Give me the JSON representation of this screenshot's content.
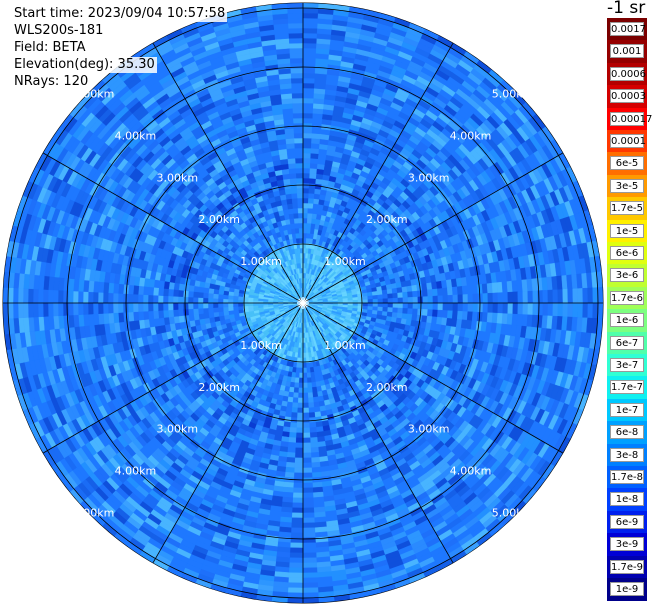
{
  "header": {
    "start_time": "Start time: 2023/09/04 10:57:58",
    "instrument": "WLS200s-181",
    "field": "Field: BETA",
    "elevation": "Elevation(deg): 35.30",
    "nrays": "NRays: 120"
  },
  "ppi": {
    "ring_labels": [
      "1.00km",
      "2.00km",
      "3.00km",
      "4.00km",
      "5.00km"
    ],
    "n_sectors": 12,
    "background_color": "#1e78ff"
  },
  "colorbar": {
    "unit_title": "-1 sr",
    "labels": [
      "0.0017",
      "0.001",
      "0.0006",
      "0.0003",
      "0.00017",
      "0.0001",
      "6e-5",
      "3e-5",
      "1.7e-5",
      "1e-5",
      "6e-6",
      "3e-6",
      "1.7e-6",
      "1e-6",
      "6e-7",
      "3e-7",
      "1.7e-7",
      "1e-7",
      "6e-8",
      "3e-8",
      "1.7e-8",
      "1e-8",
      "6e-9",
      "3e-9",
      "1.7e-9",
      "1e-9"
    ],
    "colors": [
      "#7a0000",
      "#950000",
      "#b30000",
      "#d40000",
      "#ff0000",
      "#ff3800",
      "#ff6e00",
      "#ff9a00",
      "#ffc800",
      "#fff000",
      "#e0ff10",
      "#c0ff30",
      "#a0ff58",
      "#7cff80",
      "#50ffaa",
      "#30ffd4",
      "#10f0f0",
      "#00c8ff",
      "#00a0ff",
      "#0080ff",
      "#0060ff",
      "#0040ff",
      "#0020ee",
      "#0000d6",
      "#0000b0",
      "#00008a"
    ]
  }
}
